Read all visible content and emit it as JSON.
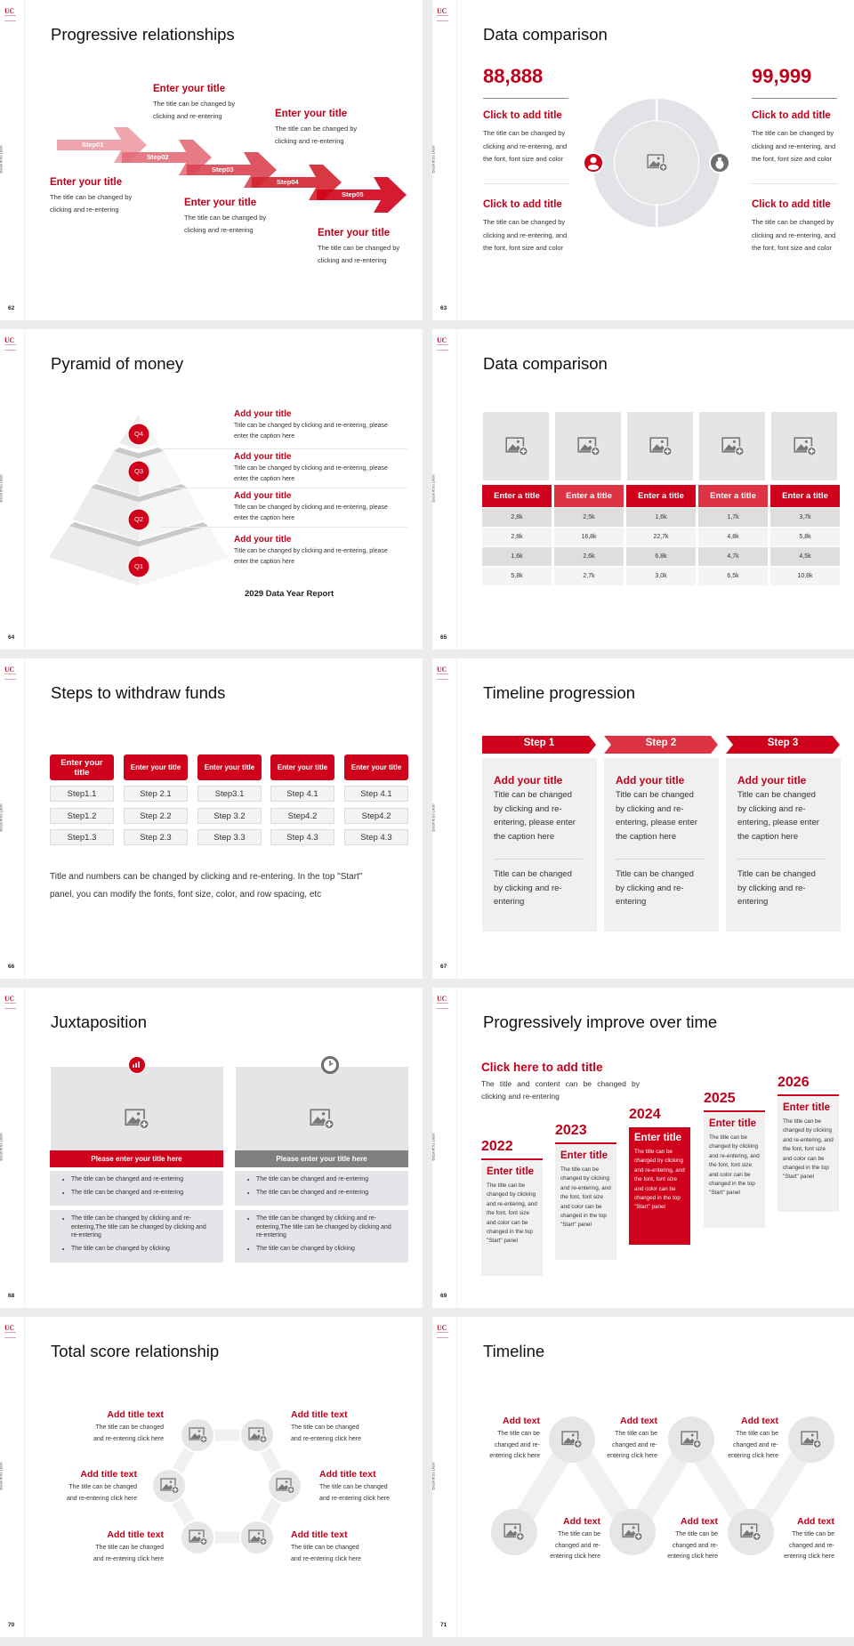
{
  "common": {
    "logo": "UC",
    "side_label": "Business plan"
  },
  "colors": {
    "accent": "#d0021b",
    "accent_light": "#dc3444",
    "panel": "#f0f0f0",
    "gray_bar": "#808080",
    "background": "#ececec"
  },
  "slides": [
    {
      "page": "62",
      "title": "Progressive relationships",
      "steps": [
        "Step01",
        "Step02",
        "Step03",
        "Step04",
        "Step05"
      ],
      "blocks": [
        {
          "title": "Enter your title",
          "body": [
            "The title can be changed by",
            "clicking and re-entering"
          ]
        },
        {
          "title": "Enter your title",
          "body": [
            "The title can be changed by",
            "clicking and re-entering"
          ]
        },
        {
          "title": "Enter your title",
          "body": [
            "The title can be changed by",
            "clicking and re-entering"
          ]
        },
        {
          "title": "Enter your title",
          "body": [
            "The title can be changed by",
            "clicking and re-entering"
          ]
        },
        {
          "title": "Enter your title",
          "body": [
            "The title can be changed by",
            "clicking and re-entering"
          ]
        }
      ]
    },
    {
      "page": "63",
      "title": "Data comparison",
      "icons": [
        "user-icon",
        "money-bag-icon"
      ],
      "columns": [
        {
          "value": "88,888",
          "items": [
            {
              "title": "Click to add title",
              "body": [
                "The title can be changed by",
                "clicking and re-entering, and",
                "the font, font size and color"
              ]
            },
            {
              "title": "Click to add title",
              "body": [
                "The title can be changed by",
                "clicking and re-entering, and",
                "the font, font size and color"
              ]
            }
          ]
        },
        {
          "value": "99,999",
          "items": [
            {
              "title": "Click to add title",
              "body": [
                "The title can be changed by",
                "clicking and re-entering, and",
                "the font, font size and color"
              ]
            },
            {
              "title": "Click to add title",
              "body": [
                "The title can be changed by",
                "clicking and re-entering, and",
                "the font, font size and color"
              ]
            }
          ]
        }
      ]
    },
    {
      "page": "64",
      "title": "Pyramid of money",
      "levels": [
        "Q4",
        "Q3",
        "Q2",
        "Q1"
      ],
      "items": [
        {
          "title": "Add your title",
          "body": [
            "Title can be changed by clicking and re-entering, please",
            "enter the caption here"
          ]
        },
        {
          "title": "Add your title",
          "body": [
            "Title can be changed by clicking and re-entering, please",
            "enter the caption here"
          ]
        },
        {
          "title": "Add your title",
          "body": [
            "Title can be changed by clicking and re-entering, please",
            "enter the caption here"
          ]
        },
        {
          "title": "Add your title",
          "body": [
            "Title can be changed by clicking and re-entering, please",
            "enter the caption here"
          ]
        }
      ],
      "footer": "2029 Data Year Report"
    },
    {
      "page": "65",
      "title": "Data comparison",
      "headers": [
        "Enter a title",
        "Enter a title",
        "Enter a title",
        "Enter a title",
        "Enter a title"
      ],
      "rows": [
        [
          "2,8k",
          "2,5k",
          "1,6k",
          "1,7k",
          "3,7k"
        ],
        [
          "2,8k",
          "16,8k",
          "22,7k",
          "4,8k",
          "5,8k"
        ],
        [
          "1,6k",
          "2,6k",
          "6,8k",
          "4,7k",
          "4,5k"
        ],
        [
          "5,8k",
          "2,7k",
          "3,0k",
          "6,5k",
          "10,8k"
        ]
      ]
    },
    {
      "page": "66",
      "title": "Steps to withdraw funds",
      "columns": [
        {
          "header": "Enter your title",
          "steps": [
            "Step1.1",
            "Step1.2",
            "Step1.3"
          ]
        },
        {
          "header": "Enter your title",
          "steps": [
            "Step 2.1",
            "Step 2.2",
            "Step 2.3"
          ]
        },
        {
          "header": "Enter your title",
          "steps": [
            "Step3.1",
            "Step 3.2",
            "Step 3.3"
          ]
        },
        {
          "header": "Enter your title",
          "steps": [
            "Step 4.1",
            "Step4.2",
            "Step 4.3"
          ]
        },
        {
          "header": "Enter your title",
          "steps": [
            "Step 4.1",
            "Step4.2",
            "Step 4.3"
          ]
        }
      ],
      "note": [
        "Title and numbers can be changed by clicking and re-entering. In the top \"Start\"",
        "panel, you can modify the fonts, font size, color, and row spacing, etc"
      ]
    },
    {
      "page": "67",
      "title": "Timeline progression",
      "steps": [
        {
          "label": "Step 1",
          "title": "Add your title",
          "body": [
            "Title can be changed",
            "by clicking and re-",
            "entering, please enter",
            "the caption here"
          ],
          "body2": [
            "Title can be changed",
            "by clicking and re-",
            "entering"
          ]
        },
        {
          "label": "Step 2",
          "title": "Add your title",
          "body": [
            "Title can be changed",
            "by clicking and re-",
            "entering, please enter",
            "the caption here"
          ],
          "body2": [
            "Title can be changed",
            "by clicking and re-",
            "entering"
          ]
        },
        {
          "label": "Step 3",
          "title": "Add your title",
          "body": [
            "Title can be changed",
            "by clicking and re-",
            "entering, please enter",
            "the caption here"
          ],
          "body2": [
            "Title can be changed",
            "by clicking and re-",
            "entering"
          ]
        }
      ]
    },
    {
      "page": "68",
      "title": "Juxtaposition",
      "panels": [
        {
          "icon": "bar-chart-icon",
          "bar": "Please enter your title here",
          "box1": [
            "The title can be changed and re-entering",
            "The title can be changed and re-entering"
          ],
          "box2": [
            "The title can be changed by clicking and re-entering,The title can be changed by clicking and re-entering",
            "The title can be changed by clicking"
          ]
        },
        {
          "icon": "clock-icon",
          "bar": "Please enter your title here",
          "box1": [
            "The title can be changed and re-entering",
            "The title can be changed and re-entering"
          ],
          "box2": [
            "The title can be changed by clicking and re-entering,The title can be changed by clicking and re-entering",
            "The title can be changed by clicking"
          ]
        }
      ]
    },
    {
      "page": "69",
      "title": "Progressively improve over time",
      "headline": "Click here to add title",
      "intro": "The title and content can be changed by clicking and re-entering",
      "years": [
        {
          "year": "2022",
          "title": "Enter title",
          "body": "The title can be changed by clicking and re-entering, and the font, font size and color can be changed in the top \"Start\" panel"
        },
        {
          "year": "2023",
          "title": "Enter title",
          "body": "The title can be changed by clicking and re-entering, and the font, font size and color can be changed in the top \"Start\" panel"
        },
        {
          "year": "2024",
          "title": "Enter title",
          "body": "The title can be changed by clicking and re-entering, and the font, font size and color can be changed in the top \"Start\" panel"
        },
        {
          "year": "2025",
          "title": "Enter title",
          "body": "The title can be changed by clicking and re-entering, and the font, font size and color can be changed in the top \"Start\" panel"
        },
        {
          "year": "2026",
          "title": "Enter title",
          "body": "The title can be changed by clicking and re-entering, and the font, font size and color can be changed in the top \"Start\" panel"
        }
      ]
    },
    {
      "page": "70",
      "title": "Total score relationship",
      "items": [
        {
          "title": "Add title text",
          "body": [
            "The title can be changed",
            "and re-entering click here"
          ]
        },
        {
          "title": "Add title text",
          "body": [
            "The title can be changed",
            "and re-entering click here"
          ]
        },
        {
          "title": "Add title text",
          "body": [
            "The title can be changed",
            "and re-entering click here"
          ]
        },
        {
          "title": "Add title text",
          "body": [
            "The title can be changed",
            "and re-entering click here"
          ]
        },
        {
          "title": "Add title text",
          "body": [
            "The title can be changed",
            "and re-entering click here"
          ]
        },
        {
          "title": "Add title text",
          "body": [
            "The title can be changed",
            "and re-entering click here"
          ]
        }
      ]
    },
    {
      "page": "71",
      "title": "Timeline",
      "items": [
        {
          "title": "Add text",
          "body": [
            "The title can be",
            "changed and re-",
            "entering click here"
          ]
        },
        {
          "title": "Add text",
          "body": [
            "The title can be",
            "changed and re-",
            "entering click here"
          ]
        },
        {
          "title": "Add text",
          "body": [
            "The title can be",
            "changed and re-",
            "entering click here"
          ]
        },
        {
          "title": "Add text",
          "body": [
            "The title can be",
            "changed and re-",
            "entering click here"
          ]
        },
        {
          "title": "Add text",
          "body": [
            "The title can be",
            "changed and re-",
            "entering click here"
          ]
        },
        {
          "title": "Add text",
          "body": [
            "The title can be",
            "changed and re-",
            "entering click here"
          ]
        }
      ]
    }
  ]
}
